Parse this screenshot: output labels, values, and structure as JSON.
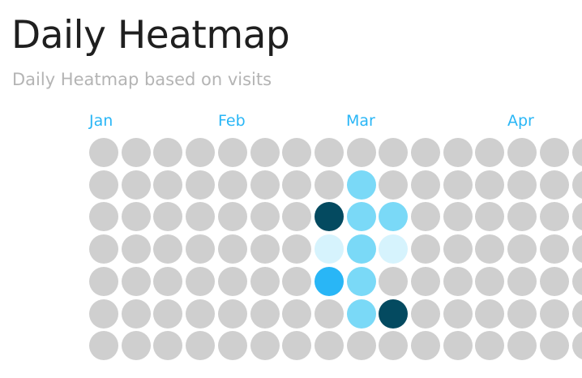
{
  "header": {
    "title": "Daily Heatmap",
    "subtitle": "Daily Heatmap based on visits"
  },
  "months": [
    "Jan",
    "Feb",
    "Mar",
    "Apr"
  ],
  "colors": {
    "empty": "#cfcfcf",
    "level_1": "#d6f3fd",
    "level_2": "#7ad9f7",
    "level_3": "#29b6f6",
    "level_4": "#044a60",
    "month_label": "#29b6f6"
  },
  "chart_data": {
    "type": "heatmap",
    "title": "Daily Heatmap",
    "subtitle": "Daily Heatmap based on visits",
    "x_labels": [
      "Jan",
      "Feb",
      "Mar",
      "Apr"
    ],
    "rows": 7,
    "columns": 16,
    "values": [
      [
        0,
        0,
        0,
        0,
        0,
        0,
        0,
        0,
        0,
        0,
        0,
        0,
        0,
        0,
        0,
        0
      ],
      [
        0,
        0,
        0,
        0,
        0,
        0,
        0,
        0,
        2,
        0,
        0,
        0,
        0,
        0,
        0,
        0
      ],
      [
        0,
        0,
        0,
        0,
        0,
        0,
        0,
        4,
        2,
        2,
        0,
        0,
        0,
        0,
        0,
        0
      ],
      [
        0,
        0,
        0,
        0,
        0,
        0,
        0,
        1,
        2,
        1,
        0,
        0,
        0,
        0,
        0,
        0
      ],
      [
        0,
        0,
        0,
        0,
        0,
        0,
        0,
        3,
        2,
        0,
        0,
        0,
        0,
        0,
        0,
        0
      ],
      [
        0,
        0,
        0,
        0,
        0,
        0,
        0,
        0,
        2,
        4,
        0,
        0,
        0,
        0,
        0,
        0
      ],
      [
        0,
        0,
        0,
        0,
        0,
        0,
        0,
        0,
        0,
        0,
        0,
        0,
        0,
        0,
        0,
        0
      ]
    ],
    "legend": "none",
    "grid": false
  }
}
